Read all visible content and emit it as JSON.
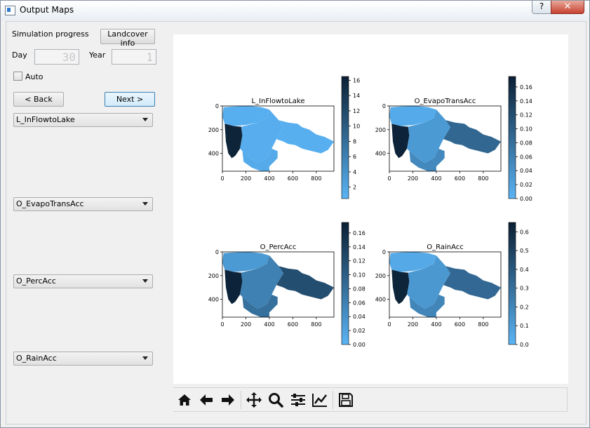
{
  "window": {
    "title": "Output Maps",
    "help_label": "?",
    "close_label": "✕"
  },
  "controls": {
    "progress_label": "Simulation progress",
    "landcover_button": "Landcover info",
    "day_label": "Day",
    "day_value": "30",
    "year_label": "Year",
    "year_value": "1",
    "auto_label": "Auto",
    "auto_checked": false,
    "back_button": "< Back",
    "next_button": "Next >"
  },
  "selectors": [
    {
      "value": "L_InFlowtoLake"
    },
    {
      "value": "O_EvapoTransAcc"
    },
    {
      "value": "O_PercAcc"
    },
    {
      "value": "O_RainAcc"
    }
  ],
  "toolbar": {
    "icons": [
      "home-icon",
      "back-arrow-icon",
      "forward-arrow-icon",
      "pan-icon",
      "zoom-icon",
      "configure-subplots-icon",
      "edit-axis-icon",
      "save-icon"
    ]
  },
  "colors": {
    "low": "#5ab4f5",
    "mid": "#3a86c2",
    "high": "#0b1f33",
    "accent": "#3c7fb1"
  },
  "chart_data": [
    {
      "type": "heatmap",
      "title": "L_InFlowtoLake",
      "x_ticks": [
        "0",
        "200",
        "400",
        "600",
        "800"
      ],
      "y_ticks": [
        "0",
        "200",
        "400"
      ],
      "colorbar_ticks": [
        "2",
        "4",
        "6",
        "8",
        "10",
        "12",
        "14",
        "16"
      ],
      "colorbar_range": [
        0.5,
        16.5
      ],
      "regions": {
        "west": 16,
        "central": 1.2,
        "south": 1.5,
        "north": 1,
        "east": 1
      }
    },
    {
      "type": "heatmap",
      "title": "O_EvapoTransAcc",
      "x_ticks": [
        "0",
        "200",
        "400",
        "600",
        "800"
      ],
      "y_ticks": [
        "0",
        "200",
        "400"
      ],
      "colorbar_ticks": [
        "0.00",
        "0.02",
        "0.04",
        "0.06",
        "0.08",
        "0.10",
        "0.12",
        "0.14",
        "0.16"
      ],
      "colorbar_range": [
        0,
        0.175
      ],
      "regions": {
        "west": 0.17,
        "central": 0.03,
        "south": 0.05,
        "north": 0.01,
        "east": 0.09
      }
    },
    {
      "type": "heatmap",
      "title": "O_PercAcc",
      "x_ticks": [
        "0",
        "200",
        "400",
        "600",
        "800"
      ],
      "y_ticks": [
        "0",
        "200",
        "400"
      ],
      "colorbar_ticks": [
        "0.00",
        "0.02",
        "0.04",
        "0.06",
        "0.08",
        "0.10",
        "0.12",
        "0.14",
        "0.16"
      ],
      "colorbar_range": [
        0,
        0.175
      ],
      "regions": {
        "west": 0.17,
        "central": 0.06,
        "south": 0.08,
        "north": 0.03,
        "east": 0.12
      }
    },
    {
      "type": "heatmap",
      "title": "O_RainAcc",
      "x_ticks": [
        "0",
        "200",
        "400",
        "600",
        "800"
      ],
      "y_ticks": [
        "0",
        "200",
        "400"
      ],
      "colorbar_ticks": [
        "0.0",
        "0.1",
        "0.2",
        "0.3",
        "0.4",
        "0.5",
        "0.6"
      ],
      "colorbar_range": [
        0,
        0.65
      ],
      "regions": {
        "west": 0.63,
        "central": 0.12,
        "south": 0.2,
        "north": 0.05,
        "east": 0.33
      }
    }
  ]
}
